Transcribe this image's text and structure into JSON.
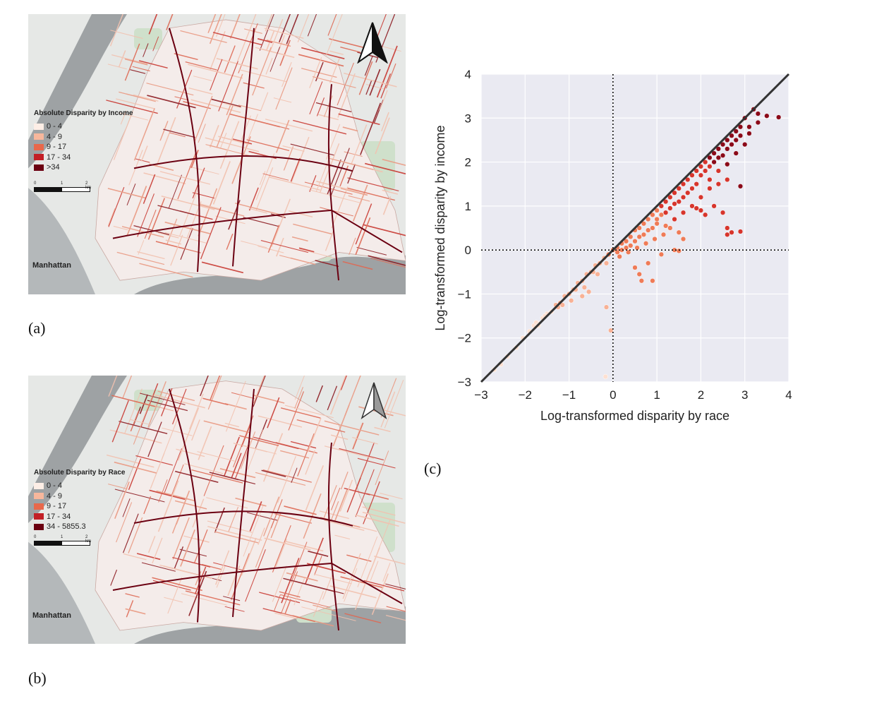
{
  "panels": {
    "a": {
      "label": "(a)",
      "legend_title": "Absolute Disparity by Income",
      "legend_items": [
        {
          "label": "0 - 4",
          "color": "#fdeee6"
        },
        {
          "label": "4 - 9",
          "color": "#f7b79c"
        },
        {
          "label": "9 - 17",
          "color": "#e8684b"
        },
        {
          "label": "17 - 34",
          "color": "#c21f26"
        },
        {
          "label": ">34",
          "color": "#6b0011"
        }
      ],
      "scale_ticks": [
        "0",
        "1",
        "2 km"
      ],
      "city_label": "Manhattan",
      "north_arrow": "north-arrow-icon"
    },
    "b": {
      "label": "(b)",
      "legend_title": "Absolute Disparity by Race",
      "legend_items": [
        {
          "label": "0 - 4",
          "color": "#fdeee6"
        },
        {
          "label": "4 - 9",
          "color": "#f7b79c"
        },
        {
          "label": "9 - 17",
          "color": "#e8684b"
        },
        {
          "label": "17 - 34",
          "color": "#c21f26"
        },
        {
          "label": "34 - 5855.3",
          "color": "#6b0011"
        }
      ],
      "scale_ticks": [
        "0",
        "1",
        "2 km"
      ],
      "city_label": "Manhattan",
      "north_arrow": "north-arrow-icon"
    },
    "c": {
      "label": "(c)"
    }
  },
  "chart_data": {
    "type": "scatter",
    "xlabel": "Log-transformed disparity by race",
    "ylabel": "Log-transformed disparity by income",
    "xlim": [
      -3,
      4
    ],
    "ylim": [
      -3,
      4
    ],
    "xticks": [
      "−3",
      "−2",
      "−1",
      "0",
      "1",
      "2",
      "3",
      "4"
    ],
    "yticks": [
      "−3",
      "−2",
      "−1",
      "0",
      "1",
      "2",
      "3",
      "4"
    ],
    "grid": true,
    "background": "#eaeaf2",
    "reference_lines": [
      {
        "type": "identity",
        "style": "solid",
        "color": "#333333"
      },
      {
        "type": "x=0",
        "style": "dotted",
        "color": "#111111"
      },
      {
        "type": "y=0",
        "style": "dotted",
        "color": "#111111"
      }
    ],
    "color_scale": [
      "#fde0d2",
      "#f8b195",
      "#ef7b57",
      "#d7352c",
      "#8b0a19"
    ],
    "points": [
      [
        -2.7,
        -2.72
      ],
      [
        -2.55,
        -2.6
      ],
      [
        -2.4,
        -2.42
      ],
      [
        -2.2,
        -2.22
      ],
      [
        -2.05,
        -2.0
      ],
      [
        -1.9,
        -1.85
      ],
      [
        -1.8,
        -1.72
      ],
      [
        -1.7,
        -1.68
      ],
      [
        -1.6,
        -1.55
      ],
      [
        -1.5,
        -1.45
      ],
      [
        -1.4,
        -1.4
      ],
      [
        -1.3,
        -1.25
      ],
      [
        -1.2,
        -1.2
      ],
      [
        -1.1,
        -1.05
      ],
      [
        -1.0,
        -1.0
      ],
      [
        -0.9,
        -0.9
      ],
      [
        -0.8,
        -0.75
      ],
      [
        -0.7,
        -0.7
      ],
      [
        -0.6,
        -0.55
      ],
      [
        -0.5,
        -0.5
      ],
      [
        -0.4,
        -0.35
      ],
      [
        -0.3,
        -0.3
      ],
      [
        -0.2,
        -0.18
      ],
      [
        -0.1,
        -0.1
      ],
      [
        -1.75,
        -1.65
      ],
      [
        -1.55,
        -1.5
      ],
      [
        -1.15,
        -1.25
      ],
      [
        -0.95,
        -1.15
      ],
      [
        -0.65,
        -0.85
      ],
      [
        -0.35,
        -0.55
      ],
      [
        -0.15,
        -0.3
      ],
      [
        -1.7,
        -1.72
      ],
      [
        -1.25,
        -1.3
      ],
      [
        -0.85,
        -0.9
      ],
      [
        -0.45,
        -0.5
      ],
      [
        -0.15,
        -1.3
      ],
      [
        -0.05,
        -1.83
      ],
      [
        -0.17,
        -2.88
      ],
      [
        -0.55,
        -0.95
      ],
      [
        -0.7,
        -1.05
      ],
      [
        0.0,
        0.0
      ],
      [
        0.1,
        0.05
      ],
      [
        0.2,
        0.15
      ],
      [
        0.3,
        0.2
      ],
      [
        0.4,
        0.3
      ],
      [
        0.5,
        0.45
      ],
      [
        0.6,
        0.5
      ],
      [
        0.7,
        0.6
      ],
      [
        0.8,
        0.7
      ],
      [
        0.9,
        0.8
      ],
      [
        0.1,
        -0.05
      ],
      [
        0.2,
        0.0
      ],
      [
        0.3,
        0.05
      ],
      [
        0.4,
        0.1
      ],
      [
        0.5,
        0.2
      ],
      [
        0.6,
        0.3
      ],
      [
        0.7,
        0.35
      ],
      [
        0.8,
        0.45
      ],
      [
        0.9,
        0.5
      ],
      [
        1.0,
        0.6
      ],
      [
        0.15,
        -0.15
      ],
      [
        0.35,
        -0.05
      ],
      [
        0.55,
        0.05
      ],
      [
        0.75,
        0.15
      ],
      [
        0.95,
        0.25
      ],
      [
        1.15,
        0.35
      ],
      [
        1.3,
        0.5
      ],
      [
        0.6,
        -0.55
      ],
      [
        0.65,
        -0.7
      ],
      [
        0.9,
        -0.7
      ],
      [
        0.5,
        -0.4
      ],
      [
        0.8,
        -0.3
      ],
      [
        1.1,
        -0.1
      ],
      [
        1.4,
        0.0
      ],
      [
        1.5,
        -0.02
      ],
      [
        1.0,
        0.9
      ],
      [
        1.1,
        1.0
      ],
      [
        1.2,
        1.1
      ],
      [
        1.3,
        1.2
      ],
      [
        1.4,
        1.3
      ],
      [
        1.5,
        1.4
      ],
      [
        1.6,
        1.5
      ],
      [
        1.7,
        1.6
      ],
      [
        1.8,
        1.7
      ],
      [
        1.9,
        1.8
      ],
      [
        1.0,
        0.7
      ],
      [
        1.1,
        0.8
      ],
      [
        1.2,
        0.85
      ],
      [
        1.3,
        0.95
      ],
      [
        1.4,
        1.05
      ],
      [
        1.5,
        1.1
      ],
      [
        1.6,
        1.2
      ],
      [
        1.7,
        1.3
      ],
      [
        1.8,
        1.4
      ],
      [
        1.9,
        1.5
      ],
      [
        1.2,
        0.55
      ],
      [
        1.4,
        0.7
      ],
      [
        1.6,
        0.85
      ],
      [
        1.8,
        1.0
      ],
      [
        2.0,
        1.2
      ],
      [
        2.2,
        1.4
      ],
      [
        2.4,
        1.5
      ],
      [
        2.6,
        1.6
      ],
      [
        1.5,
        0.4
      ],
      [
        1.6,
        0.25
      ],
      [
        1.9,
        0.95
      ],
      [
        2.0,
        0.9
      ],
      [
        2.1,
        0.8
      ],
      [
        2.3,
        1.0
      ],
      [
        2.5,
        0.85
      ],
      [
        2.6,
        0.5
      ],
      [
        2.7,
        0.4
      ],
      [
        2.6,
        0.35
      ],
      [
        2.9,
        0.42
      ],
      [
        2.9,
        1.45
      ],
      [
        2.0,
        1.9
      ],
      [
        2.1,
        2.0
      ],
      [
        2.2,
        2.1
      ],
      [
        2.3,
        2.2
      ],
      [
        2.4,
        2.3
      ],
      [
        2.5,
        2.4
      ],
      [
        2.6,
        2.5
      ],
      [
        2.7,
        2.6
      ],
      [
        2.8,
        2.7
      ],
      [
        2.9,
        2.8
      ],
      [
        2.0,
        1.7
      ],
      [
        2.1,
        1.8
      ],
      [
        2.2,
        1.9
      ],
      [
        2.3,
        2.0
      ],
      [
        2.4,
        2.1
      ],
      [
        2.5,
        2.15
      ],
      [
        2.6,
        2.3
      ],
      [
        2.7,
        2.4
      ],
      [
        2.8,
        2.5
      ],
      [
        2.9,
        2.6
      ],
      [
        2.2,
        1.6
      ],
      [
        2.4,
        1.8
      ],
      [
        2.6,
        1.95
      ],
      [
        2.8,
        2.2
      ],
      [
        3.0,
        2.4
      ],
      [
        3.1,
        2.8
      ],
      [
        3.0,
        3.0
      ],
      [
        3.2,
        3.2
      ],
      [
        3.3,
        3.1
      ],
      [
        3.5,
        3.05
      ],
      [
        3.77,
        3.02
      ],
      [
        3.1,
        2.65
      ],
      [
        3.3,
        2.9
      ]
    ]
  }
}
